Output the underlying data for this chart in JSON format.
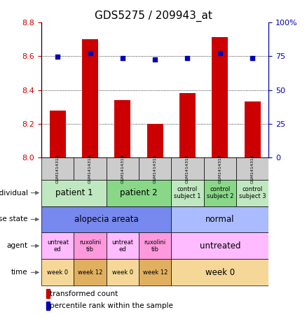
{
  "title": "GDS5275 / 209943_at",
  "samples": [
    "GSM1414312",
    "GSM1414313",
    "GSM1414314",
    "GSM1414315",
    "GSM1414316",
    "GSM1414317",
    "GSM1414318"
  ],
  "bar_values": [
    8.28,
    8.7,
    8.34,
    8.2,
    8.38,
    8.71,
    8.33
  ],
  "dot_values_pct": [
    74.5,
    77.0,
    73.5,
    72.5,
    73.5,
    77.0,
    73.5
  ],
  "ylim_left": [
    8.0,
    8.8
  ],
  "ylim_right": [
    0,
    100
  ],
  "yticks_left": [
    8.0,
    8.2,
    8.4,
    8.6,
    8.8
  ],
  "yticks_right": [
    0,
    25,
    50,
    75,
    100
  ],
  "bar_color": "#cc0000",
  "dot_color": "#0000bb",
  "hgrid_at": [
    8.2,
    8.4,
    8.6
  ],
  "individual_cells": [
    {
      "text": "patient 1",
      "colspan": 2,
      "color": "#c0e8c0"
    },
    {
      "text": "patient 2",
      "colspan": 2,
      "color": "#88d888"
    },
    {
      "text": "control\nsubject 1",
      "colspan": 1,
      "color": "#c0e8c0"
    },
    {
      "text": "control\nsubject 2",
      "colspan": 1,
      "color": "#88d888"
    },
    {
      "text": "control\nsubject 3",
      "colspan": 1,
      "color": "#c0e8c0"
    }
  ],
  "disease_cells": [
    {
      "text": "alopecia areata",
      "colspan": 4,
      "color": "#7788ee"
    },
    {
      "text": "normal",
      "colspan": 3,
      "color": "#aabbff"
    }
  ],
  "agent_cells": [
    {
      "text": "untreat\ned",
      "colspan": 1,
      "color": "#ffbbff"
    },
    {
      "text": "ruxolini\ntib",
      "colspan": 1,
      "color": "#ff99dd"
    },
    {
      "text": "untreat\ned",
      "colspan": 1,
      "color": "#ffbbff"
    },
    {
      "text": "ruxolini\ntib",
      "colspan": 1,
      "color": "#ff99dd"
    },
    {
      "text": "untreated",
      "colspan": 3,
      "color": "#ffbbff"
    }
  ],
  "time_cells": [
    {
      "text": "week 0",
      "colspan": 1,
      "color": "#f5d898"
    },
    {
      "text": "week 12",
      "colspan": 1,
      "color": "#e0b060"
    },
    {
      "text": "week 0",
      "colspan": 1,
      "color": "#f5d898"
    },
    {
      "text": "week 12",
      "colspan": 1,
      "color": "#e0b060"
    },
    {
      "text": "week 0",
      "colspan": 3,
      "color": "#f5d898"
    }
  ],
  "row_labels": [
    "individual",
    "disease state",
    "agent",
    "time"
  ],
  "legend_bar_label": "transformed count",
  "legend_dot_label": "percentile rank within the sample",
  "header_bg": "#cccccc"
}
